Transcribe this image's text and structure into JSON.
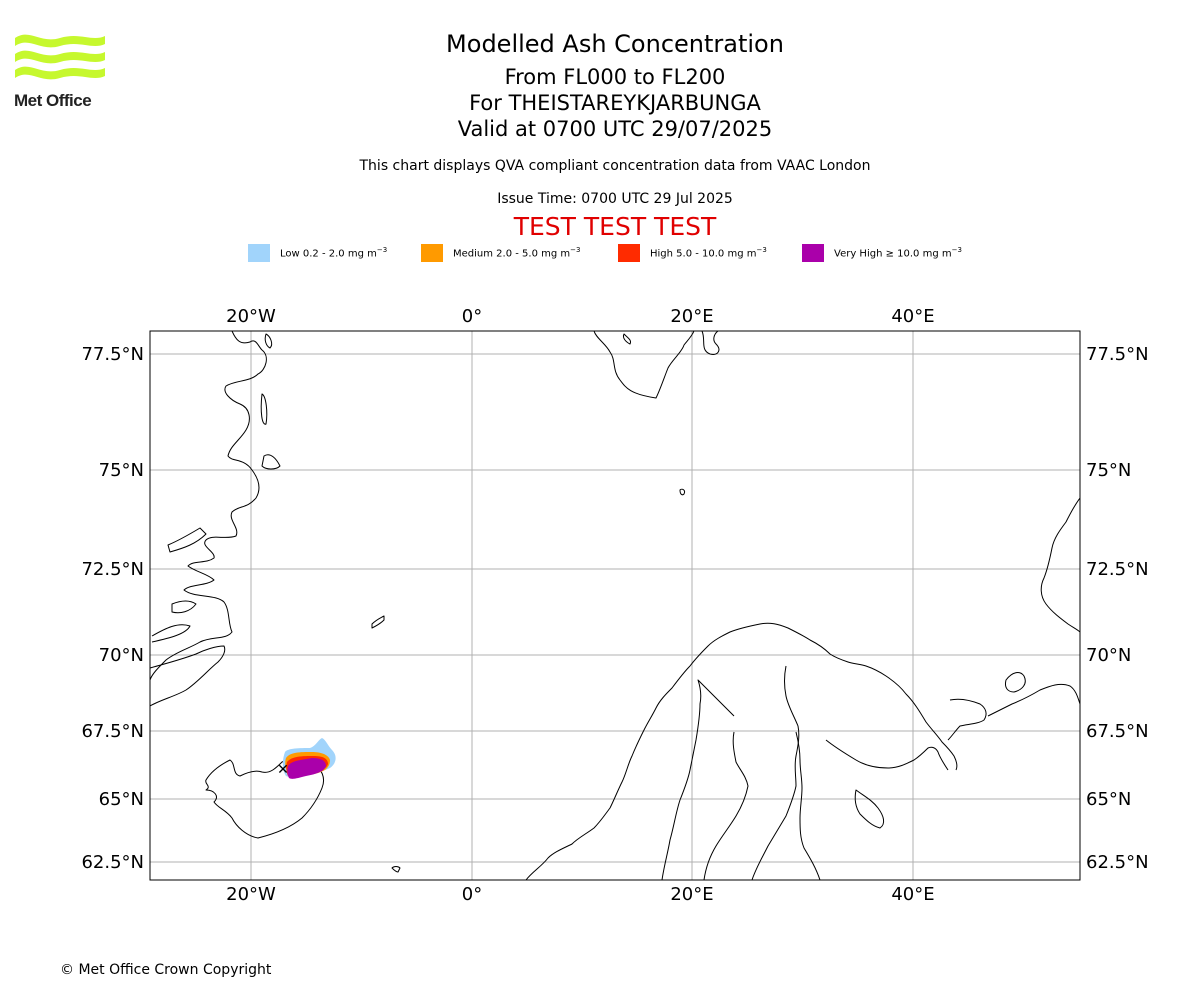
{
  "header": {
    "logo_text": "Met Office",
    "title": "Modelled Ash Concentration",
    "subtitle_lines": [
      "From FL000 to FL200",
      "For THEISTAREYKJARBUNGA",
      "Valid at 0700 UTC 29/07/2025"
    ],
    "description": "This chart displays QVA compliant concentration data from VAAC London",
    "issue_time": "Issue Time: 0700 UTC 29 Jul 2025",
    "test_banner": "TEST TEST TEST"
  },
  "legend": [
    {
      "label": "Low 0.2 - 2.0 mg m",
      "color": "#a1d4fb"
    },
    {
      "label": "Medium 2.0 - 5.0 mg m",
      "color": "#ff9a00"
    },
    {
      "label": "High 5.0 - 10.0 mg m",
      "color": "#ff2b00"
    },
    {
      "label": "Very High ≥ 10.0 mg m",
      "color": "#aa00aa"
    }
  ],
  "legend_unit_exponent": "−3",
  "map": {
    "lon_labels": [
      "20°W",
      "0°",
      "20°E",
      "40°E"
    ],
    "lat_labels": [
      "77.5°N",
      "75°N",
      "72.5°N",
      "70°N",
      "67.5°N",
      "65°N",
      "62.5°N"
    ],
    "volcano_marker": "✕"
  },
  "footer": {
    "copyright": "© Met Office Crown Copyright"
  }
}
